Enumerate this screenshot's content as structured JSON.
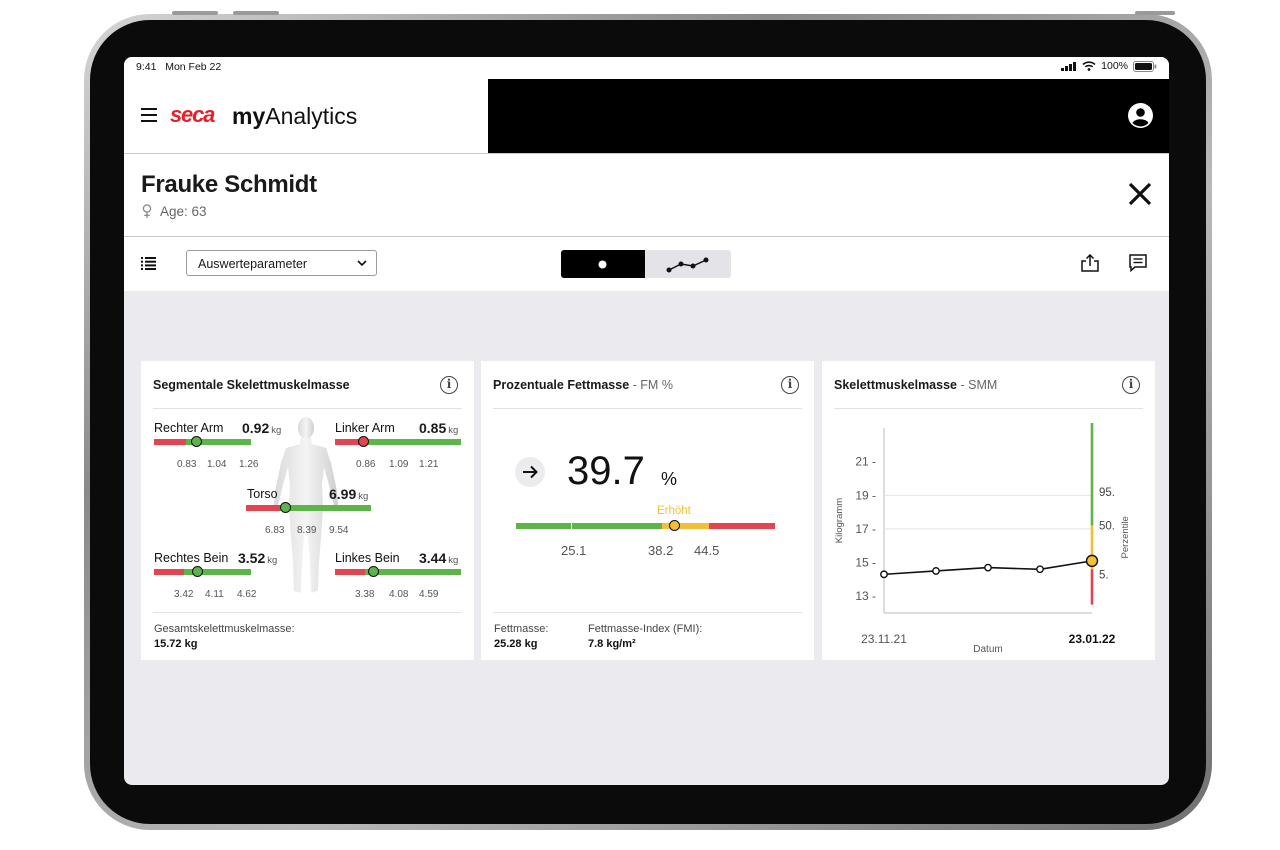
{
  "status_bar": {
    "time": "9:41",
    "date": "Mon Feb 22",
    "battery": "100%"
  },
  "header": {
    "brand": "seca",
    "app_name_bold": "my",
    "app_name_rest": "Analytics"
  },
  "patient": {
    "name": "Frauke Schmidt",
    "age_label": "Age: 63"
  },
  "toolbar": {
    "parameter_select": "Auswerteparameter"
  },
  "cards": {
    "segmental": {
      "title": "Segmentale Skelettmuskelmasse",
      "right_arm": {
        "label": "Rechter Arm",
        "value": "0.92",
        "unit": "kg",
        "ticks": [
          "0.83",
          "1.04",
          "1.26"
        ]
      },
      "left_arm": {
        "label": "Linker Arm",
        "value": "0.85",
        "unit": "kg",
        "ticks": [
          "0.86",
          "1.09",
          "1.21"
        ]
      },
      "torso": {
        "label": "Torso",
        "value": "6.99",
        "unit": "kg",
        "ticks": [
          "6.83",
          "8.39",
          "9.54"
        ]
      },
      "right_leg": {
        "label": "Rechtes Bein",
        "value": "3.52",
        "unit": "kg",
        "ticks": [
          "3.42",
          "4.11",
          "4.62"
        ]
      },
      "left_leg": {
        "label": "Linkes Bein",
        "value": "3.44",
        "unit": "kg",
        "ticks": [
          "3.38",
          "4.08",
          "4.59"
        ]
      },
      "total_label": "Gesamtskelettmuskelmasse:",
      "total_value": "15.72 kg"
    },
    "fat": {
      "title": "Prozentuale Fettmasse",
      "subtitle": "- FM %",
      "value": "39.7",
      "unit": "%",
      "status": "Erhöht",
      "ticks": [
        "25.1",
        "38.2",
        "44.5"
      ],
      "fat_mass_label": "Fettmasse:",
      "fat_mass_value": "25.28 kg",
      "fmi_label": "Fettmasse-Index (FMI):",
      "fmi_value": "7.8 kg/m²"
    },
    "smm": {
      "title": "Skelettmuskelmasse",
      "subtitle": "- SMM",
      "chart_data": {
        "type": "line",
        "ylabel": "Kilogramm",
        "xlabel": "Datum",
        "right_label": "Perzentile",
        "x_tick_labels": [
          "23.11.21",
          "23.01.22"
        ],
        "y_ticks": [
          13,
          15,
          17,
          19,
          21
        ],
        "ylim": [
          12,
          23
        ],
        "series": [
          {
            "values": [
              14.3,
              14.5,
              14.7,
              14.6,
              15.1
            ]
          }
        ],
        "percentile_labels": [
          "95.",
          "50.",
          "5."
        ],
        "colors": {
          "line": "#111111",
          "green": "#5db54a",
          "yellow": "#f2c037",
          "red": "#e24450"
        }
      }
    }
  }
}
